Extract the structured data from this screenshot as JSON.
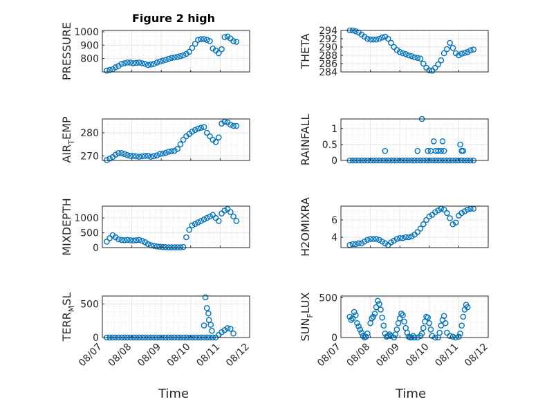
{
  "figure": {
    "title": "Figure 2 high",
    "xlabel": "Time",
    "marker_color": "#0072BD",
    "x_ticks": [
      "08/07",
      "08/08",
      "08/09",
      "08/10",
      "08/11",
      "08/12"
    ]
  },
  "chart_data": [
    {
      "type": "scatter",
      "name": "PRESSURE",
      "ylabel": "PRESSURE",
      "ylabel_sub": null,
      "ylim": [
        700,
        1010
      ],
      "yticks": [
        800,
        900,
        1000
      ],
      "xlim": [
        0,
        5
      ],
      "x": [
        0.15,
        0.25,
        0.35,
        0.45,
        0.55,
        0.65,
        0.75,
        0.85,
        0.95,
        1.05,
        1.15,
        1.25,
        1.35,
        1.45,
        1.55,
        1.65,
        1.75,
        1.85,
        1.95,
        2.05,
        2.15,
        2.25,
        2.35,
        2.45,
        2.55,
        2.65,
        2.75,
        2.85,
        2.95,
        3.05,
        3.15,
        3.25,
        3.35,
        3.45,
        3.55,
        3.65,
        3.75,
        3.85,
        3.95,
        4.05,
        4.15,
        4.25,
        4.35,
        4.45,
        4.55
      ],
      "y": [
        710,
        715,
        720,
        735,
        745,
        760,
        765,
        770,
        770,
        765,
        768,
        770,
        765,
        760,
        752,
        755,
        760,
        770,
        778,
        785,
        790,
        798,
        805,
        808,
        812,
        818,
        825,
        835,
        850,
        880,
        910,
        940,
        945,
        945,
        940,
        930,
        875,
        860,
        840,
        870,
        960,
        965,
        950,
        930,
        925
      ]
    },
    {
      "type": "scatter",
      "name": "THETA",
      "ylabel": "THETA",
      "ylabel_sub": null,
      "ylim": [
        284,
        294
      ],
      "yticks": [
        284,
        286,
        288,
        290,
        292,
        294
      ],
      "xlim": [
        0,
        5
      ],
      "x": [
        0.3,
        0.4,
        0.5,
        0.6,
        0.7,
        0.8,
        0.9,
        1.0,
        1.1,
        1.2,
        1.3,
        1.4,
        1.5,
        1.6,
        1.7,
        1.8,
        1.9,
        2.0,
        2.1,
        2.2,
        2.3,
        2.4,
        2.5,
        2.6,
        2.7,
        2.8,
        2.9,
        3.0,
        3.1,
        3.2,
        3.3,
        3.4,
        3.5,
        3.6,
        3.7,
        3.8,
        3.9,
        4.0,
        4.1,
        4.2,
        4.3,
        4.4,
        4.5
      ],
      "y": [
        294,
        294,
        293.8,
        293.5,
        293,
        292.5,
        292,
        291.8,
        291.8,
        291.8,
        292,
        292.3,
        292.5,
        292,
        291,
        290,
        289.3,
        288.8,
        288.5,
        288.3,
        288,
        287.8,
        287.5,
        287.4,
        287.2,
        286,
        285,
        284.4,
        284.3,
        285,
        285.8,
        286.8,
        288.5,
        289.5,
        291,
        289.8,
        288.5,
        288,
        288.4,
        288.6,
        288.8,
        289.2,
        289.4
      ]
    },
    {
      "type": "scatter",
      "name": "AIR_TEMP",
      "ylabel": "AIR",
      "ylabel_sub": "T",
      "ylabel_tail": "EMP",
      "ylim": [
        268,
        286
      ],
      "yticks": [
        270,
        280
      ],
      "xlim": [
        0,
        5
      ],
      "x": [
        0.15,
        0.25,
        0.35,
        0.45,
        0.55,
        0.65,
        0.75,
        0.85,
        0.95,
        1.05,
        1.15,
        1.25,
        1.35,
        1.45,
        1.55,
        1.65,
        1.75,
        1.85,
        1.95,
        2.05,
        2.15,
        2.25,
        2.35,
        2.45,
        2.55,
        2.65,
        2.75,
        2.85,
        2.95,
        3.05,
        3.15,
        3.25,
        3.35,
        3.45,
        3.55,
        3.65,
        3.75,
        3.85,
        3.95,
        4.05,
        4.15,
        4.25,
        4.35,
        4.45,
        4.55
      ],
      "y": [
        268.2,
        268.8,
        269.5,
        270.5,
        271.2,
        271.2,
        270.8,
        270.3,
        270,
        270,
        269.8,
        269.6,
        269.8,
        270,
        270,
        269.6,
        269.9,
        270.2,
        270.8,
        271,
        271.3,
        271.8,
        272,
        272.2,
        273,
        275,
        277,
        278.5,
        279.5,
        280.5,
        281.2,
        281.8,
        282.2,
        282.5,
        280,
        278.5,
        277,
        276,
        278,
        284,
        284.8,
        284.5,
        283.5,
        283,
        283
      ]
    },
    {
      "type": "scatter",
      "name": "RAINFALL",
      "ylabel": "RAINFALL",
      "ylabel_sub": null,
      "ylim": [
        0,
        1.3
      ],
      "yticks": [
        0,
        0.5,
        1
      ],
      "xlim": [
        0,
        5
      ],
      "x": [
        0.3,
        0.4,
        0.5,
        0.6,
        0.7,
        0.8,
        0.9,
        1.0,
        1.1,
        1.2,
        1.3,
        1.4,
        1.5,
        1.6,
        1.7,
        1.8,
        1.9,
        2.0,
        2.1,
        2.2,
        2.3,
        2.4,
        2.5,
        2.6,
        2.7,
        2.8,
        2.9,
        3.0,
        3.1,
        3.2,
        3.3,
        3.4,
        3.5,
        3.6,
        3.7,
        3.8,
        3.9,
        4.0,
        4.1,
        4.2,
        4.3,
        4.4,
        4.5,
        1.5,
        2.6,
        2.75,
        2.95,
        3.05,
        3.15,
        3.22,
        3.3,
        3.4,
        3.45,
        3.5,
        4.05,
        4.1,
        4.15
      ],
      "y": [
        0,
        0,
        0,
        0,
        0,
        0,
        0,
        0,
        0,
        0,
        0,
        0,
        0,
        0,
        0,
        0,
        0,
        0,
        0,
        0,
        0,
        0,
        0,
        0,
        0,
        0,
        0,
        0,
        0,
        0,
        0,
        0,
        0,
        0,
        0,
        0,
        0,
        0,
        0,
        0,
        0,
        0,
        0,
        0.3,
        0.3,
        1.3,
        0.3,
        0.3,
        0.6,
        0.3,
        0.3,
        0.3,
        0.6,
        0.3,
        0.5,
        0.3,
        0.3
      ]
    },
    {
      "type": "scatter",
      "name": "MIXDEPTH",
      "ylabel": "MIXDEPTH",
      "ylabel_sub": null,
      "ylim": [
        0,
        1400
      ],
      "yticks": [
        0,
        500,
        1000
      ],
      "xlim": [
        0,
        5
      ],
      "x": [
        0.15,
        0.25,
        0.35,
        0.45,
        0.55,
        0.65,
        0.75,
        0.85,
        0.95,
        1.05,
        1.15,
        1.25,
        1.35,
        1.45,
        1.55,
        1.65,
        1.75,
        1.85,
        1.95,
        2.05,
        2.15,
        2.25,
        2.35,
        2.45,
        2.55,
        2.65,
        2.75,
        2.85,
        2.95,
        3.05,
        3.15,
        3.25,
        3.35,
        3.45,
        3.55,
        3.65,
        3.75,
        3.85,
        3.95,
        4.05,
        4.15,
        4.25,
        4.35,
        4.45,
        4.55
      ],
      "y": [
        200,
        320,
        420,
        350,
        280,
        260,
        250,
        260,
        250,
        240,
        250,
        260,
        230,
        180,
        120,
        80,
        60,
        40,
        30,
        20,
        15,
        10,
        10,
        10,
        10,
        10,
        20,
        350,
        600,
        750,
        800,
        850,
        900,
        950,
        1000,
        1050,
        1100,
        1000,
        900,
        1150,
        1250,
        1300,
        1200,
        1050,
        900
      ]
    },
    {
      "type": "scatter",
      "name": "H2OMIXRA",
      "ylabel": "H2OMIXRA",
      "ylabel_sub": null,
      "ylim": [
        2.8,
        7.6
      ],
      "yticks": [
        4,
        6
      ],
      "xlim": [
        0,
        5
      ],
      "x": [
        0.3,
        0.4,
        0.5,
        0.6,
        0.7,
        0.8,
        0.9,
        1.0,
        1.1,
        1.2,
        1.3,
        1.4,
        1.5,
        1.6,
        1.7,
        1.8,
        1.9,
        2.0,
        2.1,
        2.2,
        2.3,
        2.4,
        2.5,
        2.6,
        2.7,
        2.8,
        2.9,
        3.0,
        3.1,
        3.2,
        3.3,
        3.4,
        3.5,
        3.6,
        3.7,
        3.8,
        3.9,
        4.0,
        4.1,
        4.2,
        4.3,
        4.4,
        4.5
      ],
      "y": [
        3.1,
        3.2,
        3.2,
        3.3,
        3.3,
        3.5,
        3.7,
        3.8,
        3.8,
        3.8,
        3.7,
        3.5,
        3.3,
        3.1,
        3.4,
        3.6,
        3.8,
        3.9,
        3.9,
        4,
        4,
        4.1,
        4.3,
        4.6,
        5,
        5.5,
        6,
        6.4,
        6.6,
        6.9,
        7.1,
        7.3,
        7.2,
        6.8,
        6.2,
        5.5,
        5.7,
        6.5,
        6.8,
        7.0,
        7.2,
        7.3,
        7.3
      ]
    },
    {
      "type": "scatter",
      "name": "TERR_MSL",
      "ylabel": "TERR",
      "ylabel_sub": "M",
      "ylabel_tail": "SL",
      "ylim": [
        0,
        620
      ],
      "yticks": [
        0,
        500
      ],
      "xlim": [
        0,
        5
      ],
      "x": [
        0.15,
        0.25,
        0.35,
        0.45,
        0.55,
        0.65,
        0.75,
        0.85,
        0.95,
        1.05,
        1.15,
        1.25,
        1.35,
        1.45,
        1.55,
        1.65,
        1.75,
        1.85,
        1.95,
        2.05,
        2.15,
        2.25,
        2.35,
        2.45,
        2.55,
        2.65,
        2.75,
        2.85,
        2.95,
        3.05,
        3.15,
        3.25,
        3.35,
        3.45,
        3.55,
        3.65,
        3.75,
        3.85,
        3.95,
        4.05,
        4.15,
        4.25,
        4.35,
        4.45,
        3.45,
        3.5,
        3.55,
        3.6,
        3.62,
        3.68,
        3.72
      ],
      "y": [
        0,
        0,
        0,
        0,
        0,
        0,
        0,
        0,
        0,
        0,
        0,
        0,
        0,
        0,
        0,
        0,
        0,
        0,
        0,
        0,
        0,
        0,
        0,
        0,
        0,
        0,
        0,
        0,
        0,
        0,
        0,
        0,
        0,
        0,
        0,
        0,
        0,
        0,
        40,
        80,
        110,
        140,
        130,
        60,
        180,
        600,
        440,
        360,
        260,
        190,
        100
      ]
    },
    {
      "type": "scatter",
      "name": "SUN_FLUX",
      "ylabel": "SUN",
      "ylabel_sub": "F",
      "ylabel_tail": "LUX",
      "ylim": [
        0,
        520
      ],
      "yticks": [
        0,
        500
      ],
      "xlim": [
        0,
        5
      ],
      "x": [
        0.3,
        0.35,
        0.4,
        0.45,
        0.5,
        0.55,
        0.6,
        0.65,
        0.7,
        0.75,
        0.8,
        0.85,
        0.9,
        1.0,
        1.05,
        1.1,
        1.15,
        1.2,
        1.25,
        1.3,
        1.35,
        1.4,
        1.45,
        1.5,
        1.55,
        1.6,
        1.65,
        1.7,
        1.8,
        1.85,
        1.9,
        1.95,
        2.0,
        2.05,
        2.1,
        2.15,
        2.2,
        2.25,
        2.3,
        2.35,
        2.4,
        2.45,
        2.5,
        2.6,
        2.7,
        2.75,
        2.8,
        2.85,
        2.9,
        2.95,
        3.0,
        3.05,
        3.1,
        3.2,
        3.3,
        3.35,
        3.4,
        3.45,
        3.5,
        3.55,
        3.6,
        3.7,
        3.8,
        3.9,
        4.0,
        4.05,
        4.1,
        4.15,
        4.2,
        4.25,
        4.3
      ],
      "y": [
        260,
        220,
        240,
        320,
        280,
        180,
        140,
        100,
        60,
        20,
        0,
        10,
        50,
        180,
        240,
        260,
        300,
        380,
        460,
        420,
        350,
        250,
        150,
        50,
        10,
        20,
        40,
        20,
        0,
        40,
        100,
        180,
        240,
        300,
        280,
        200,
        120,
        60,
        10,
        0,
        0,
        20,
        0,
        0,
        20,
        50,
        120,
        200,
        260,
        250,
        180,
        100,
        20,
        0,
        0,
        60,
        150,
        220,
        270,
        180,
        60,
        20,
        10,
        0,
        10,
        50,
        150,
        260,
        350,
        410,
        380
      ]
    }
  ]
}
